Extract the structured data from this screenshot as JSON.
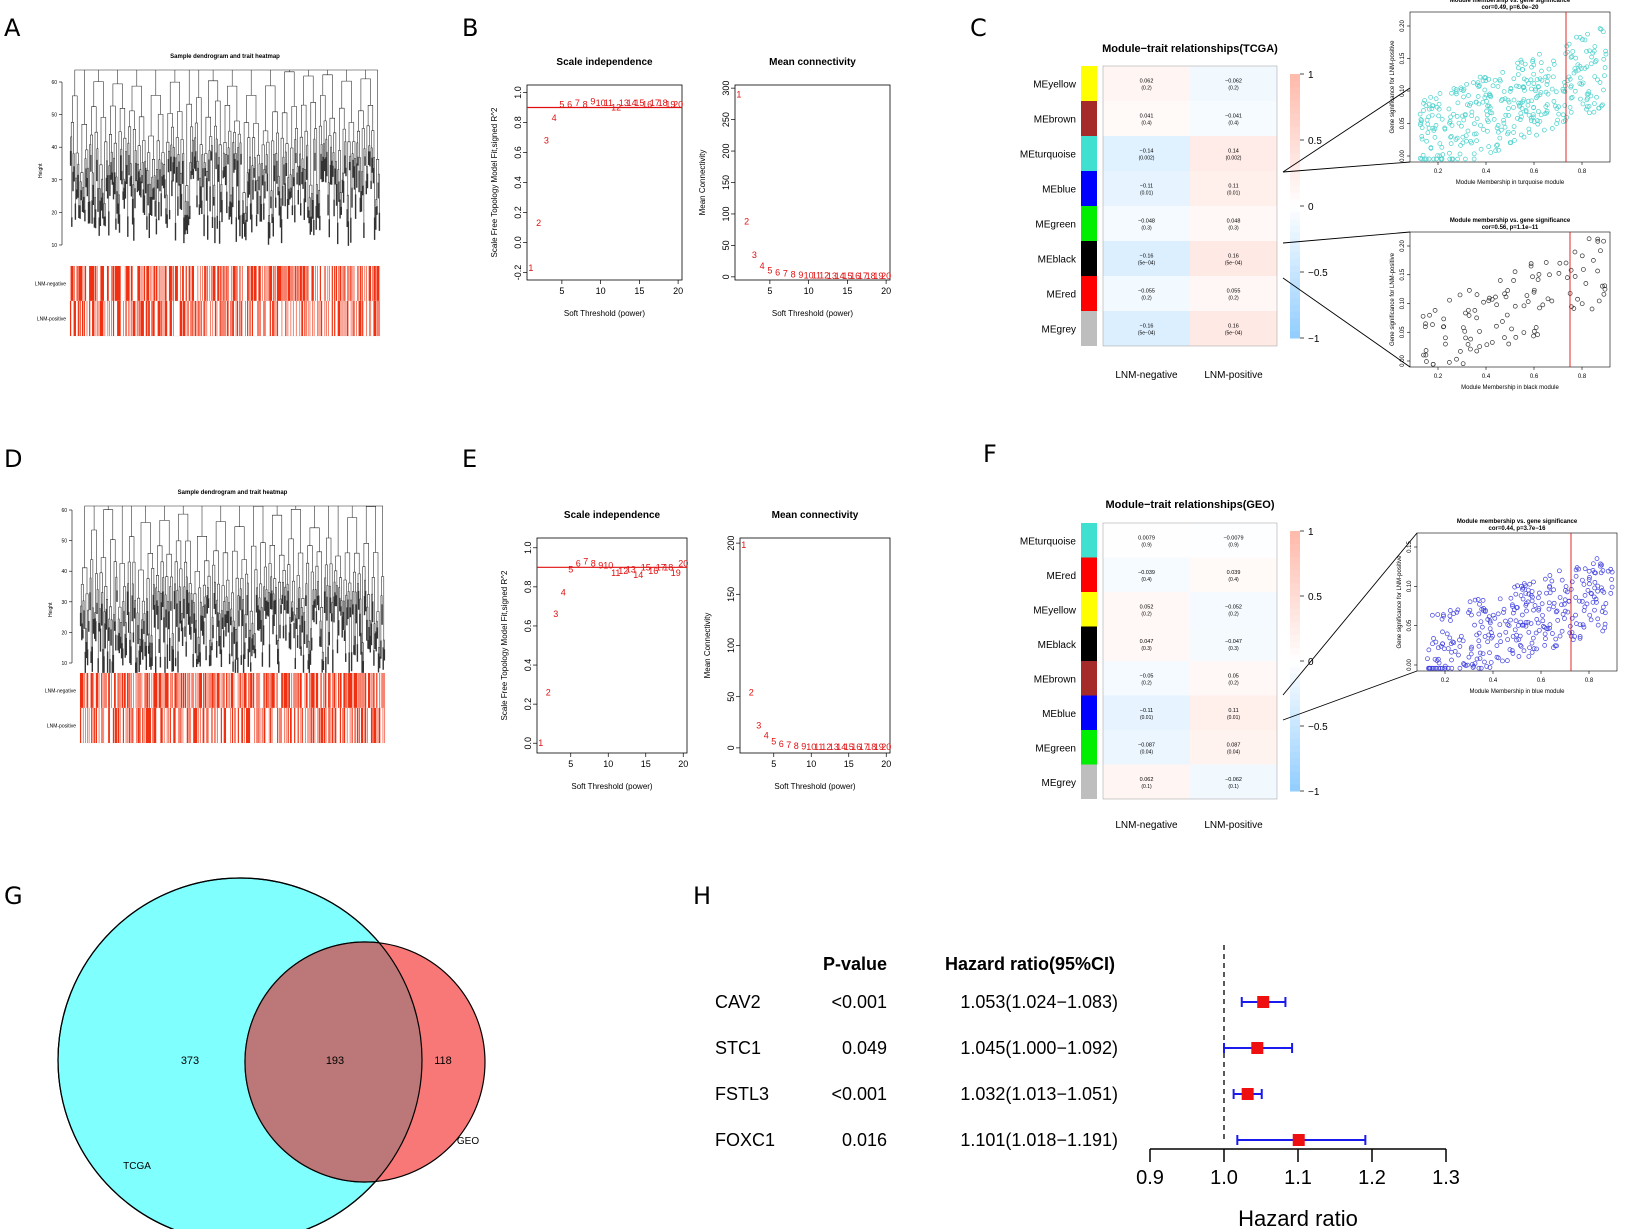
{
  "panels": {
    "A": "A",
    "B": "B",
    "C": "C",
    "D": "D",
    "E": "E",
    "F": "F",
    "G": "G",
    "H": "H"
  },
  "A": {
    "title": "Sample dendrogram and trait heatmap",
    "ylabel": "Height",
    "yticks": [
      "60",
      "50",
      "40",
      "30",
      "20",
      "10"
    ],
    "traits": [
      "LNM-negative",
      "LNM-positive"
    ]
  },
  "D": {
    "title": "Sample dendrogram and trait heatmap",
    "ylabel": "Height",
    "yticks": [
      "60",
      "50",
      "40",
      "30",
      "20",
      "10"
    ],
    "traits": [
      "LNM-negative",
      "LNM-positive"
    ]
  },
  "B": {
    "scale": {
      "title": "Scale independence",
      "xlabel": "Soft Threshold (power)",
      "ylabel": "Scale Free Topology Model Fit,signed R^2",
      "xticks": [
        "5",
        "10",
        "15",
        "20"
      ],
      "yticks": [
        "-0.2",
        "0.0",
        "0.2",
        "0.4",
        "0.6",
        "0.8",
        "1.0"
      ]
    },
    "conn": {
      "title": "Mean connectivity",
      "xlabel": "Soft Threshold (power)",
      "ylabel": "Mean Connectivity",
      "xticks": [
        "5",
        "10",
        "15",
        "20"
      ],
      "yticks": [
        "0",
        "50",
        "100",
        "150",
        "200",
        "250",
        "300"
      ]
    }
  },
  "E": {
    "scale": {
      "title": "Scale independence",
      "xlabel": "Soft Threshold (power)",
      "ylabel": "Scale Free Topology Model Fit,signed R^2",
      "xticks": [
        "5",
        "10",
        "15",
        "20"
      ],
      "yticks": [
        "0.0",
        "0.2",
        "0.4",
        "0.6",
        "0.8",
        "1.0"
      ]
    },
    "conn": {
      "title": "Mean connectivity",
      "xlabel": "Soft Threshold (power)",
      "ylabel": "Mean Connectivity",
      "xticks": [
        "5",
        "10",
        "15",
        "20"
      ],
      "yticks": [
        "0",
        "50",
        "100",
        "150",
        "200"
      ]
    }
  },
  "C": {
    "title": "Module−trait relationships(TCGA)",
    "cols": [
      "LNM-negative",
      "LNM-positive"
    ],
    "rows": [
      {
        "name": "MEyellow",
        "color": "#ffff00",
        "c1": "0.062",
        "p1": "(0.2)",
        "c2": "−0.062",
        "p2": "(0.2)"
      },
      {
        "name": "MEbrown",
        "color": "#a52a2a",
        "c1": "0.041",
        "p1": "(0.4)",
        "c2": "−0.041",
        "p2": "(0.4)"
      },
      {
        "name": "MEturquoise",
        "color": "#40e0d0",
        "c1": "−0.14",
        "p1": "(0.002)",
        "c2": "0.14",
        "p2": "(0.002)"
      },
      {
        "name": "MEblue",
        "color": "#0000ff",
        "c1": "−0.11",
        "p1": "(0.01)",
        "c2": "0.11",
        "p2": "(0.01)"
      },
      {
        "name": "MEgreen",
        "color": "#00ee00",
        "c1": "−0.048",
        "p1": "(0.3)",
        "c2": "0.048",
        "p2": "(0.3)"
      },
      {
        "name": "MEblack",
        "color": "#000000",
        "c1": "−0.16",
        "p1": "(5e−04)",
        "c2": "0.16",
        "p2": "(5e−04)"
      },
      {
        "name": "MEred",
        "color": "#ff0000",
        "c1": "−0.055",
        "p1": "(0.2)",
        "c2": "0.055",
        "p2": "(0.2)"
      },
      {
        "name": "MEgrey",
        "color": "#bebebe",
        "c1": "−0.16",
        "p1": "(5e−04)",
        "c2": "0.16",
        "p2": "(5e−04)"
      }
    ],
    "legend": [
      "1",
      "0.5",
      "0",
      "−0.5",
      "−1"
    ],
    "scatter1": {
      "title": "Module membership vs. gene significance",
      "sub": "cor=0.49, p=6.0e−20",
      "xlabel": "Module Membership in turquoise module",
      "ylabel": "Gene significance for LNM-positive",
      "xticks": [
        "0.2",
        "0.4",
        "0.6",
        "0.8"
      ],
      "yticks": [
        "0.00",
        "0.05",
        "0.10",
        "0.15",
        "0.20"
      ],
      "color": "#48d1cc"
    },
    "scatter2": {
      "title": "Module membership vs. gene significance",
      "sub": "cor=0.56, p=1.1e−11",
      "xlabel": "Module Membership in black module",
      "ylabel": "Gene significance for LNM-positive",
      "xticks": [
        "0.2",
        "0.4",
        "0.6",
        "0.8"
      ],
      "yticks": [
        "0.00",
        "0.05",
        "0.10",
        "0.15",
        "0.20"
      ],
      "color": "#333333"
    }
  },
  "F": {
    "title": "Module−trait relationships(GEO)",
    "cols": [
      "LNM-negative",
      "LNM-positive"
    ],
    "rows": [
      {
        "name": "MEturquoise",
        "color": "#40e0d0",
        "c1": "0.0079",
        "p1": "(0.9)",
        "c2": "−0.0079",
        "p2": "(0.9)"
      },
      {
        "name": "MEred",
        "color": "#ff0000",
        "c1": "−0.039",
        "p1": "(0.4)",
        "c2": "0.039",
        "p2": "(0.4)"
      },
      {
        "name": "MEyellow",
        "color": "#ffff00",
        "c1": "0.052",
        "p1": "(0.2)",
        "c2": "−0.052",
        "p2": "(0.2)"
      },
      {
        "name": "MEblack",
        "color": "#000000",
        "c1": "0.047",
        "p1": "(0.3)",
        "c2": "−0.047",
        "p2": "(0.3)"
      },
      {
        "name": "MEbrown",
        "color": "#a52a2a",
        "c1": "−0.05",
        "p1": "(0.2)",
        "c2": "0.05",
        "p2": "(0.2)"
      },
      {
        "name": "MEblue",
        "color": "#0000ff",
        "c1": "−0.11",
        "p1": "(0.01)",
        "c2": "0.11",
        "p2": "(0.01)"
      },
      {
        "name": "MEgreen",
        "color": "#00ee00",
        "c1": "−0.087",
        "p1": "(0.04)",
        "c2": "0.087",
        "p2": "(0.04)"
      },
      {
        "name": "MEgrey",
        "color": "#bebebe",
        "c1": "0.062",
        "p1": "(0.1)",
        "c2": "−0.062",
        "p2": "(0.1)"
      }
    ],
    "legend": [
      "1",
      "0.5",
      "0",
      "−0.5",
      "−1"
    ],
    "scatter1": {
      "title": "Module membership vs. gene significance",
      "sub": "cor=0.44, p=3.7e−16",
      "xlabel": "Module Membership in blue module",
      "ylabel": "Gene significance for LNM-positive",
      "xticks": [
        "0.2",
        "0.4",
        "0.6",
        "0.8"
      ],
      "yticks": [
        "0.00",
        "0.05",
        "0.10",
        "0.15"
      ],
      "color": "#4040e0"
    }
  },
  "G": {
    "left_label": "TCGA",
    "right_label": "GEO",
    "left_only": "373",
    "both": "193",
    "right_only": "118",
    "left_color": "#80ffff",
    "right_color": "#f87878",
    "overlap_color": "#bc7878"
  },
  "H": {
    "col_p": "P-value",
    "col_hr": "Hazard ratio(95%CI)",
    "xlabel": "Hazard ratio",
    "xticks": [
      "0.9",
      "1.0",
      "1.1",
      "1.2",
      "1.3"
    ]
  },
  "chart_data": [
    {
      "type": "line",
      "panel": "B",
      "title": "Scale independence",
      "xlabel": "Soft Threshold (power)",
      "ylabel": "Scale Free Topology Model Fit,signed R^2",
      "x": [
        1,
        2,
        3,
        4,
        5,
        6,
        7,
        8,
        9,
        10,
        11,
        12,
        13,
        14,
        15,
        16,
        17,
        18,
        19,
        20
      ],
      "y": [
        -0.17,
        0.13,
        0.68,
        0.83,
        0.92,
        0.92,
        0.93,
        0.92,
        0.94,
        0.93,
        0.93,
        0.9,
        0.93,
        0.93,
        0.93,
        0.92,
        0.93,
        0.93,
        0.92,
        0.92
      ],
      "ylim": [
        -0.25,
        1.05
      ],
      "xlim": [
        0.5,
        20.5
      ],
      "hline": 0.9
    },
    {
      "type": "line",
      "panel": "B",
      "title": "Mean connectivity",
      "xlabel": "Soft Threshold (power)",
      "ylabel": "Mean Connectivity",
      "x": [
        1,
        2,
        3,
        4,
        5,
        6,
        7,
        8,
        9,
        10,
        11,
        12,
        13,
        14,
        15,
        16,
        17,
        18,
        19,
        20
      ],
      "y": [
        290,
        88,
        35,
        17,
        10,
        7,
        5,
        4,
        3,
        2.5,
        2,
        2,
        1.5,
        1.5,
        1.2,
        1,
        1,
        1,
        1,
        1
      ],
      "ylim": [
        -5,
        305
      ],
      "xlim": [
        0.5,
        20.5
      ]
    },
    {
      "type": "line",
      "panel": "E",
      "title": "Scale independence",
      "xlabel": "Soft Threshold (power)",
      "ylabel": "Scale Free Topology Model Fit,signed R^2",
      "x": [
        1,
        2,
        3,
        4,
        5,
        6,
        7,
        8,
        9,
        10,
        11,
        12,
        13,
        14,
        15,
        16,
        17,
        18,
        19,
        20
      ],
      "y": [
        0.0,
        0.26,
        0.66,
        0.77,
        0.89,
        0.92,
        0.93,
        0.92,
        0.91,
        0.91,
        0.87,
        0.88,
        0.89,
        0.86,
        0.9,
        0.88,
        0.9,
        0.9,
        0.87,
        0.92
      ],
      "ylim": [
        -0.05,
        1.05
      ],
      "xlim": [
        0.5,
        20.5
      ],
      "hline": 0.9
    },
    {
      "type": "line",
      "panel": "E",
      "title": "Mean connectivity",
      "xlabel": "Soft Threshold (power)",
      "ylabel": "Mean Connectivity",
      "x": [
        1,
        2,
        3,
        4,
        5,
        6,
        7,
        8,
        9,
        10,
        11,
        12,
        13,
        14,
        15,
        16,
        17,
        18,
        19,
        20
      ],
      "y": [
        198,
        54,
        22,
        12,
        6,
        4,
        3,
        2,
        1.5,
        1,
        1,
        1,
        1,
        1,
        1,
        1,
        1,
        1,
        1,
        1
      ],
      "ylim": [
        -5,
        205
      ],
      "xlim": [
        0.5,
        20.5
      ]
    },
    {
      "type": "table",
      "panel": "H",
      "title": "Hazard ratio(95%CI)",
      "rows": [
        {
          "gene": "CAV2",
          "p": "<0.001",
          "text": "1.053(1.024−1.083)",
          "hr": 1.053,
          "lo": 1.024,
          "hi": 1.083
        },
        {
          "gene": "STC1",
          "p": "0.049",
          "text": "1.045(1.000−1.092)",
          "hr": 1.045,
          "lo": 1.0,
          "hi": 1.092
        },
        {
          "gene": "FSTL3",
          "p": "<0.001",
          "text": "1.032(1.013−1.051)",
          "hr": 1.032,
          "lo": 1.013,
          "hi": 1.051
        },
        {
          "gene": "FOXC1",
          "p": "0.016",
          "text": "1.101(1.018−1.191)",
          "hr": 1.101,
          "lo": 1.018,
          "hi": 1.191
        }
      ],
      "xlim": [
        0.9,
        1.3
      ],
      "ref": 1.0,
      "xlabel": "Hazard ratio"
    }
  ]
}
